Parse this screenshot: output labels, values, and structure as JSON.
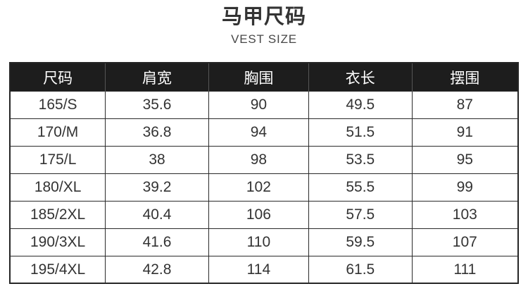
{
  "header": {
    "title": "马甲尺码",
    "subtitle": "VEST SIZE"
  },
  "colors": {
    "background": "#ffffff",
    "table_header_bg": "#1d1d1d",
    "table_header_text": "#ffffff",
    "body_text": "#333333",
    "border": "#2a2a2a"
  },
  "chart_data": {
    "type": "table",
    "title": "马甲尺码",
    "subtitle": "VEST SIZE",
    "columns": [
      "尺码",
      "肩宽",
      "胸围",
      "衣长",
      "摆围"
    ],
    "rows": [
      [
        "165/S",
        "35.6",
        "90",
        "49.5",
        "87"
      ],
      [
        "170/M",
        "36.8",
        "94",
        "51.5",
        "91"
      ],
      [
        "175/L",
        "38",
        "98",
        "53.5",
        "95"
      ],
      [
        "180/XL",
        "39.2",
        "102",
        "55.5",
        "99"
      ],
      [
        "185/2XL",
        "40.4",
        "106",
        "57.5",
        "103"
      ],
      [
        "190/3XL",
        "41.6",
        "110",
        "59.5",
        "107"
      ],
      [
        "195/4XL",
        "42.8",
        "114",
        "61.5",
        "111"
      ]
    ]
  }
}
